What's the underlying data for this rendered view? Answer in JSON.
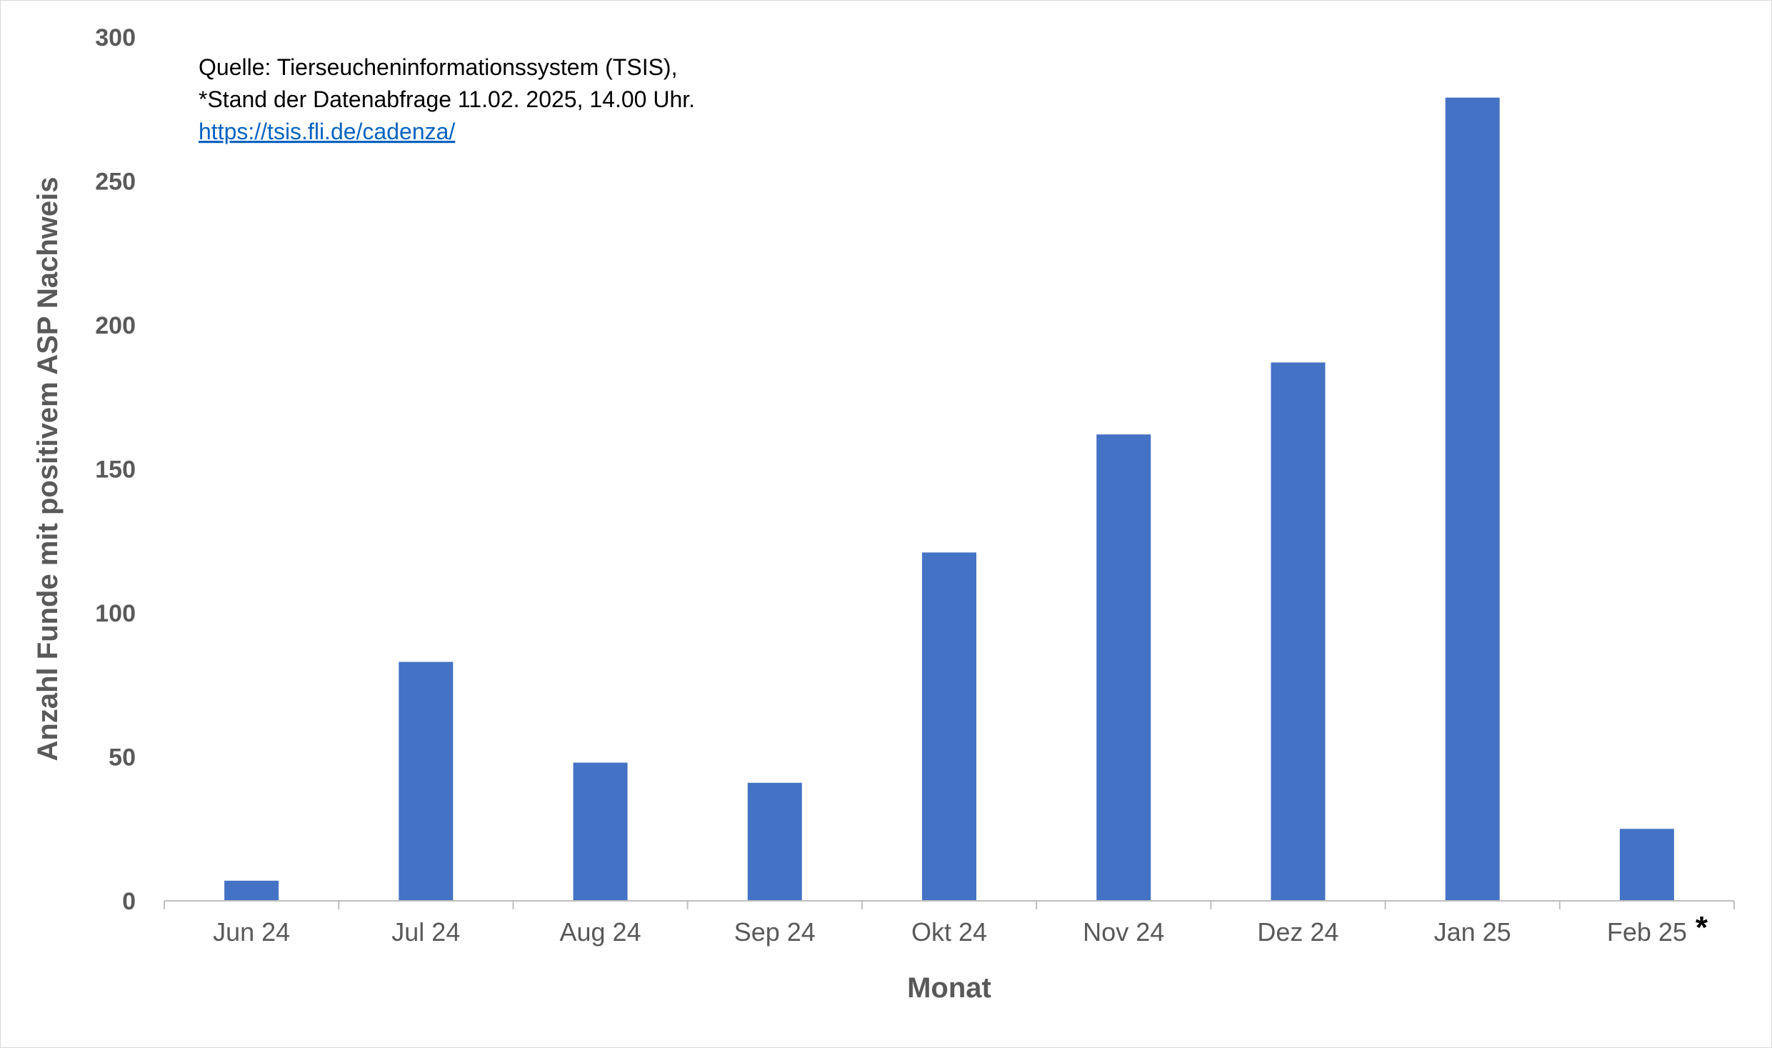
{
  "chart_data": {
    "type": "bar",
    "categories": [
      "Jun 24",
      "Jul 24",
      "Aug 24",
      "Sep 24",
      "Okt 24",
      "Nov 24",
      "Dez 24",
      "Jan 25",
      "Feb 25"
    ],
    "values": [
      7,
      83,
      48,
      41,
      121,
      162,
      187,
      279,
      25
    ],
    "xlabel": "Monat",
    "ylabel": "Anzahl Funde mit positivem ASP Nachweis",
    "ylim": [
      0,
      300
    ],
    "yticks": [
      0,
      50,
      100,
      150,
      200,
      250,
      300
    ],
    "bar_color": "#4472c4",
    "grid": false,
    "legend": "none",
    "annotation_lines": [
      "Quelle: Tierseucheninformationssystem (TSIS),",
      "*Stand der Datenabfrage 11.02. 2025, 14.00 Uhr."
    ],
    "source_link": "https://tsis.fli.de/cadenza/",
    "last_category_marker": "*"
  }
}
